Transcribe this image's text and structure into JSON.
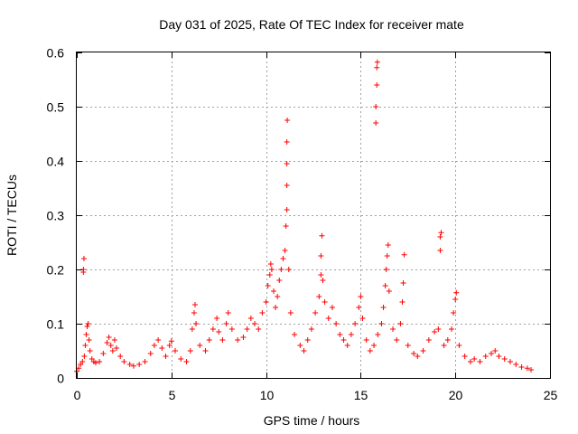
{
  "chart_data": {
    "type": "scatter",
    "title": "Day 031 of 2025, Rate Of TEC Index for receiver mate",
    "xlabel": "GPS time / hours",
    "ylabel": "ROTI / TECUs",
    "xlim": [
      0,
      25
    ],
    "ylim": [
      0,
      0.6
    ],
    "xticks": [
      "0",
      "5",
      "10",
      "15",
      "20",
      "25"
    ],
    "yticks": [
      "0",
      "0.1",
      "0.2",
      "0.3",
      "0.4",
      "0.5",
      "0.6"
    ],
    "grid": true,
    "legend": "none",
    "marker": "+",
    "color": "#ff0000",
    "series": [
      {
        "points": [
          [
            0.0,
            0.012
          ],
          [
            0.1,
            0.018
          ],
          [
            0.2,
            0.025
          ],
          [
            0.3,
            0.03
          ],
          [
            0.35,
            0.195
          ],
          [
            0.35,
            0.2
          ],
          [
            0.38,
            0.22
          ],
          [
            0.4,
            0.04
          ],
          [
            0.45,
            0.06
          ],
          [
            0.5,
            0.08
          ],
          [
            0.55,
            0.095
          ],
          [
            0.6,
            0.1
          ],
          [
            0.65,
            0.07
          ],
          [
            0.7,
            0.05
          ],
          [
            0.8,
            0.035
          ],
          [
            0.9,
            0.03
          ],
          [
            1.0,
            0.028
          ],
          [
            1.2,
            0.03
          ],
          [
            1.4,
            0.045
          ],
          [
            1.6,
            0.065
          ],
          [
            1.7,
            0.075
          ],
          [
            1.8,
            0.06
          ],
          [
            1.9,
            0.05
          ],
          [
            2.0,
            0.07
          ],
          [
            2.1,
            0.055
          ],
          [
            2.3,
            0.04
          ],
          [
            2.5,
            0.03
          ],
          [
            2.8,
            0.025
          ],
          [
            3.0,
            0.022
          ],
          [
            3.3,
            0.025
          ],
          [
            3.6,
            0.03
          ],
          [
            3.9,
            0.045
          ],
          [
            4.1,
            0.06
          ],
          [
            4.3,
            0.07
          ],
          [
            4.5,
            0.055
          ],
          [
            4.7,
            0.04
          ],
          [
            4.9,
            0.06
          ],
          [
            5.0,
            0.068
          ],
          [
            5.2,
            0.05
          ],
          [
            5.5,
            0.035
          ],
          [
            5.8,
            0.03
          ],
          [
            6.0,
            0.05
          ],
          [
            6.1,
            0.09
          ],
          [
            6.2,
            0.12
          ],
          [
            6.25,
            0.135
          ],
          [
            6.3,
            0.1
          ],
          [
            6.5,
            0.06
          ],
          [
            6.8,
            0.05
          ],
          [
            7.0,
            0.07
          ],
          [
            7.2,
            0.09
          ],
          [
            7.4,
            0.11
          ],
          [
            7.5,
            0.085
          ],
          [
            7.7,
            0.07
          ],
          [
            7.9,
            0.1
          ],
          [
            8.0,
            0.12
          ],
          [
            8.2,
            0.09
          ],
          [
            8.5,
            0.07
          ],
          [
            8.8,
            0.075
          ],
          [
            9.0,
            0.09
          ],
          [
            9.2,
            0.11
          ],
          [
            9.4,
            0.1
          ],
          [
            9.6,
            0.09
          ],
          [
            9.8,
            0.12
          ],
          [
            10.0,
            0.14
          ],
          [
            10.1,
            0.17
          ],
          [
            10.2,
            0.19
          ],
          [
            10.25,
            0.21
          ],
          [
            10.3,
            0.2
          ],
          [
            10.4,
            0.16
          ],
          [
            10.5,
            0.13
          ],
          [
            10.6,
            0.15
          ],
          [
            10.7,
            0.18
          ],
          [
            10.8,
            0.2
          ],
          [
            10.9,
            0.22
          ],
          [
            11.0,
            0.235
          ],
          [
            11.05,
            0.28
          ],
          [
            11.1,
            0.31
          ],
          [
            11.1,
            0.355
          ],
          [
            11.1,
            0.395
          ],
          [
            11.1,
            0.435
          ],
          [
            11.12,
            0.475
          ],
          [
            11.2,
            0.2
          ],
          [
            11.3,
            0.12
          ],
          [
            11.5,
            0.08
          ],
          [
            11.8,
            0.06
          ],
          [
            12.0,
            0.05
          ],
          [
            12.2,
            0.07
          ],
          [
            12.4,
            0.09
          ],
          [
            12.6,
            0.12
          ],
          [
            12.8,
            0.15
          ],
          [
            12.9,
            0.19
          ],
          [
            12.9,
            0.225
          ],
          [
            12.95,
            0.262
          ],
          [
            13.0,
            0.18
          ],
          [
            13.1,
            0.14
          ],
          [
            13.3,
            0.11
          ],
          [
            13.5,
            0.13
          ],
          [
            13.7,
            0.1
          ],
          [
            13.9,
            0.08
          ],
          [
            14.1,
            0.07
          ],
          [
            14.3,
            0.06
          ],
          [
            14.5,
            0.08
          ],
          [
            14.7,
            0.1
          ],
          [
            14.9,
            0.13
          ],
          [
            15.0,
            0.15
          ],
          [
            15.1,
            0.11
          ],
          [
            15.3,
            0.07
          ],
          [
            15.5,
            0.05
          ],
          [
            15.7,
            0.06
          ],
          [
            15.8,
            0.47
          ],
          [
            15.8,
            0.5
          ],
          [
            15.85,
            0.54
          ],
          [
            15.85,
            0.572
          ],
          [
            15.88,
            0.582
          ],
          [
            15.9,
            0.08
          ],
          [
            16.1,
            0.1
          ],
          [
            16.2,
            0.13
          ],
          [
            16.3,
            0.17
          ],
          [
            16.35,
            0.2
          ],
          [
            16.4,
            0.225
          ],
          [
            16.45,
            0.245
          ],
          [
            16.5,
            0.16
          ],
          [
            16.7,
            0.09
          ],
          [
            16.9,
            0.07
          ],
          [
            17.1,
            0.1
          ],
          [
            17.2,
            0.14
          ],
          [
            17.25,
            0.175
          ],
          [
            17.3,
            0.227
          ],
          [
            17.5,
            0.06
          ],
          [
            17.8,
            0.045
          ],
          [
            18.0,
            0.04
          ],
          [
            18.3,
            0.05
          ],
          [
            18.6,
            0.07
          ],
          [
            18.9,
            0.085
          ],
          [
            19.1,
            0.09
          ],
          [
            19.2,
            0.235
          ],
          [
            19.2,
            0.26
          ],
          [
            19.25,
            0.268
          ],
          [
            19.4,
            0.06
          ],
          [
            19.6,
            0.07
          ],
          [
            19.8,
            0.09
          ],
          [
            19.9,
            0.12
          ],
          [
            20.0,
            0.145
          ],
          [
            20.05,
            0.157
          ],
          [
            20.2,
            0.06
          ],
          [
            20.5,
            0.04
          ],
          [
            20.8,
            0.03
          ],
          [
            21.0,
            0.035
          ],
          [
            21.3,
            0.03
          ],
          [
            21.6,
            0.04
          ],
          [
            21.9,
            0.045
          ],
          [
            22.1,
            0.05
          ],
          [
            22.3,
            0.04
          ],
          [
            22.6,
            0.035
          ],
          [
            22.9,
            0.03
          ],
          [
            23.2,
            0.025
          ],
          [
            23.5,
            0.02
          ],
          [
            23.8,
            0.018
          ],
          [
            24.0,
            0.015
          ]
        ]
      }
    ]
  }
}
